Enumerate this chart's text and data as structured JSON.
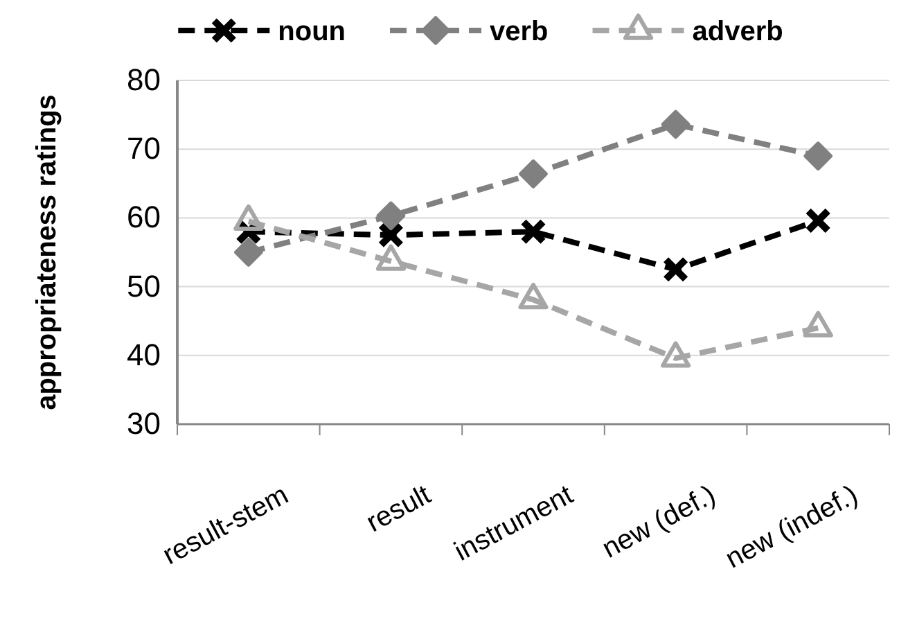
{
  "chart_data": {
    "type": "line",
    "ylabel": "appropriateness ratings",
    "categories": [
      "result-stem",
      "result",
      "instrument",
      "new (def.)",
      "new (indef.)"
    ],
    "series": [
      {
        "name": "noun",
        "color": "#000000",
        "marker": "cross",
        "values": [
          58,
          57.5,
          58,
          52.5,
          59.6
        ]
      },
      {
        "name": "verb",
        "color": "#808080",
        "marker": "diamond",
        "values": [
          55,
          60.3,
          66.4,
          73.6,
          69
        ]
      },
      {
        "name": "adverb",
        "color": "#a6a6a6",
        "marker": "triangle",
        "values": [
          59.5,
          53.7,
          48.1,
          39.6,
          44
        ]
      }
    ],
    "ylim": [
      30,
      80
    ],
    "yticks": [
      30,
      40,
      50,
      60,
      70,
      80
    ],
    "grid": "y",
    "legend": "top",
    "line_style": "dashed"
  }
}
